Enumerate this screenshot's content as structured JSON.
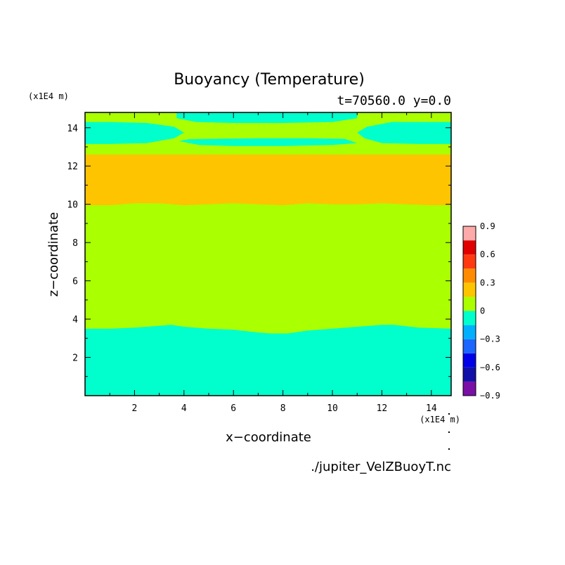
{
  "chart_data": {
    "type": "heatmap",
    "title": "Buoyancy (Temperature)",
    "subtitle": "t=70560.0 y=0.0",
    "xlabel": "x−coordinate",
    "ylabel": "z−coordinate",
    "x_unit": "(x1E4 m)",
    "y_unit": "(x1E4 m)",
    "xlim": [
      0,
      14.8
    ],
    "ylim": [
      0,
      14.8
    ],
    "x_ticks": [
      2,
      4,
      6,
      8,
      10,
      12,
      14
    ],
    "y_ticks": [
      2,
      4,
      6,
      8,
      10,
      12,
      14
    ],
    "source_file": "./jupiter_VelZBuoyT.nc",
    "colorbar": {
      "levels": [
        -0.9,
        -0.75,
        -0.6,
        -0.45,
        -0.3,
        -0.15,
        0,
        0.15,
        0.3,
        0.45,
        0.6,
        0.75,
        0.9
      ],
      "tick_labels": [
        "0.9",
        "0.6",
        "0.3",
        "0",
        "−0.3",
        "−0.6",
        "−0.9"
      ],
      "tick_values": [
        0.9,
        0.6,
        0.3,
        0,
        -0.3,
        -0.6,
        -0.9
      ],
      "colors": [
        "#7a0fa6",
        "#1010a8",
        "#0000e6",
        "#1a66ff",
        "#00b0ff",
        "#00ffcc",
        "#aaff00",
        "#ffc400",
        "#ff8c00",
        "#ff3a10",
        "#e00000",
        "#ffaaaa"
      ]
    },
    "regions": [
      {
        "name": "lower-layer",
        "value_range": [
          -0.15,
          0
        ],
        "color": "#00ffcc",
        "z_top_profile": [
          [
            0,
            3.5
          ],
          [
            1,
            3.5
          ],
          [
            2,
            3.55
          ],
          [
            3,
            3.65
          ],
          [
            3.5,
            3.7
          ],
          [
            4,
            3.6
          ],
          [
            5,
            3.5
          ],
          [
            6,
            3.45
          ],
          [
            7,
            3.3
          ],
          [
            7.5,
            3.25
          ],
          [
            8.2,
            3.25
          ],
          [
            9,
            3.4
          ],
          [
            10,
            3.5
          ],
          [
            11,
            3.6
          ],
          [
            12,
            3.7
          ],
          [
            12.5,
            3.7
          ],
          [
            13.5,
            3.55
          ],
          [
            14.8,
            3.5
          ]
        ]
      },
      {
        "name": "middle-layer",
        "value_range": [
          0,
          0.15
        ],
        "color": "#aaff00"
      },
      {
        "name": "warm-layer",
        "value_range": [
          0.15,
          0.3
        ],
        "color": "#ffc400",
        "z_bottom_profile": [
          [
            0,
            9.95
          ],
          [
            1,
            9.95
          ],
          [
            2,
            10.05
          ],
          [
            3,
            10.05
          ],
          [
            4,
            9.95
          ],
          [
            5,
            10.0
          ],
          [
            6,
            10.05
          ],
          [
            7,
            10.0
          ],
          [
            8,
            9.95
          ],
          [
            9,
            10.05
          ],
          [
            10,
            10.0
          ],
          [
            11,
            10.0
          ],
          [
            12,
            10.05
          ],
          [
            13,
            10.0
          ],
          [
            14,
            9.95
          ],
          [
            14.8,
            9.95
          ]
        ],
        "z_top": 12.6
      },
      {
        "name": "upper-left-band",
        "value_range": [
          -0.15,
          0
        ],
        "color": "#00ffcc",
        "outline": [
          [
            0,
            13.15
          ],
          [
            1,
            13.15
          ],
          [
            2.5,
            13.2
          ],
          [
            3.6,
            13.45
          ],
          [
            4.0,
            13.75
          ],
          [
            3.6,
            14.05
          ],
          [
            2.5,
            14.25
          ],
          [
            1,
            14.3
          ],
          [
            0,
            14.3
          ]
        ]
      },
      {
        "name": "upper-right-band",
        "value_range": [
          -0.15,
          0
        ],
        "color": "#00ffcc",
        "outline": [
          [
            14.8,
            13.15
          ],
          [
            13.5,
            13.15
          ],
          [
            12,
            13.2
          ],
          [
            11.3,
            13.45
          ],
          [
            11.0,
            13.75
          ],
          [
            11.4,
            14.05
          ],
          [
            12.4,
            14.3
          ],
          [
            14.8,
            14.3
          ]
        ]
      },
      {
        "name": "top-center-band",
        "value_range": [
          -0.15,
          0
        ],
        "color": "#00ffcc",
        "outline": [
          [
            3.7,
            14.8
          ],
          [
            3.7,
            14.5
          ],
          [
            4.5,
            14.3
          ],
          [
            6,
            14.25
          ],
          [
            8,
            14.25
          ],
          [
            10,
            14.3
          ],
          [
            11.0,
            14.5
          ],
          [
            11.0,
            14.8
          ]
        ]
      },
      {
        "name": "thin-center-band",
        "value_range": [
          -0.15,
          0
        ],
        "color": "#00ffcc",
        "outline": [
          [
            3.8,
            13.3
          ],
          [
            4.6,
            13.1
          ],
          [
            6,
            13.05
          ],
          [
            8,
            13.05
          ],
          [
            10,
            13.1
          ],
          [
            11.0,
            13.2
          ],
          [
            10.5,
            13.42
          ],
          [
            9,
            13.45
          ],
          [
            7,
            13.45
          ],
          [
            5,
            13.42
          ],
          [
            4.2,
            13.4
          ]
        ]
      }
    ]
  }
}
